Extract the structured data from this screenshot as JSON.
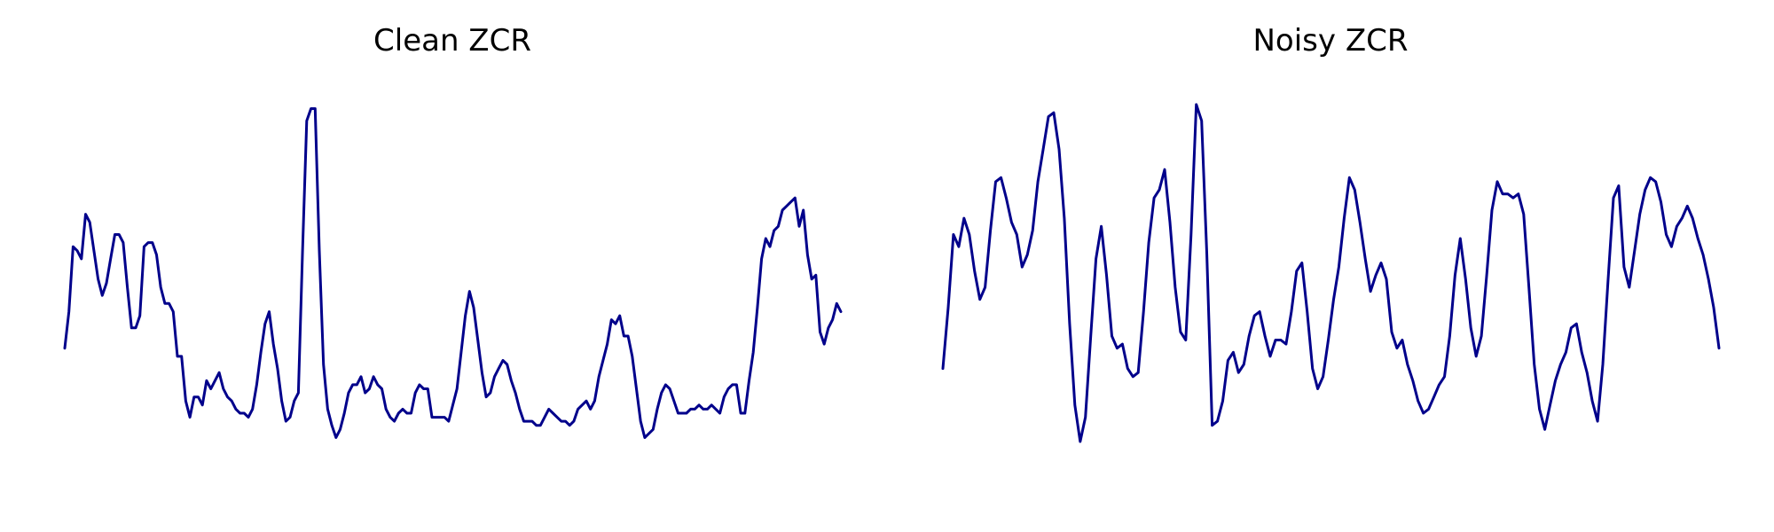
{
  "line_color": "#00008b",
  "background_color": "#ffffff",
  "chart_data": [
    {
      "type": "line",
      "title": "Clean ZCR",
      "xlabel": "",
      "ylabel": "",
      "axes": "off",
      "grid": false,
      "legend": "none",
      "xlim": [
        0,
        138
      ],
      "ylim": [
        0,
        1
      ],
      "series": [
        {
          "values": [
            0.35,
            0.44,
            0.6,
            0.59,
            0.57,
            0.68,
            0.66,
            0.59,
            0.52,
            0.48,
            0.51,
            0.57,
            0.63,
            0.63,
            0.61,
            0.5,
            0.4,
            0.4,
            0.43,
            0.6,
            0.61,
            0.61,
            0.58,
            0.5,
            0.46,
            0.46,
            0.44,
            0.33,
            0.33,
            0.22,
            0.18,
            0.23,
            0.23,
            0.21,
            0.27,
            0.25,
            0.27,
            0.29,
            0.25,
            0.23,
            0.22,
            0.2,
            0.19,
            0.19,
            0.18,
            0.2,
            0.26,
            0.34,
            0.41,
            0.44,
            0.36,
            0.3,
            0.22,
            0.17,
            0.18,
            0.22,
            0.24,
            0.59,
            0.91,
            0.94,
            0.94,
            0.59,
            0.31,
            0.2,
            0.16,
            0.13,
            0.15,
            0.19,
            0.24,
            0.26,
            0.26,
            0.28,
            0.24,
            0.25,
            0.28,
            0.26,
            0.25,
            0.2,
            0.18,
            0.17,
            0.19,
            0.2,
            0.19,
            0.19,
            0.24,
            0.26,
            0.25,
            0.25,
            0.18,
            0.18,
            0.18,
            0.18,
            0.17,
            0.21,
            0.25,
            0.34,
            0.43,
            0.49,
            0.45,
            0.37,
            0.29,
            0.23,
            0.24,
            0.28,
            0.3,
            0.32,
            0.31,
            0.27,
            0.24,
            0.2,
            0.17,
            0.17,
            0.17,
            0.16,
            0.16,
            0.18,
            0.2,
            0.19,
            0.18,
            0.17,
            0.17,
            0.16,
            0.17,
            0.2,
            0.21,
            0.22,
            0.2,
            0.22,
            0.28,
            0.32,
            0.36,
            0.42,
            0.41,
            0.43,
            0.38,
            0.38,
            0.33,
            0.25,
            0.17,
            0.13,
            0.14,
            0.15,
            0.2,
            0.24,
            0.26,
            0.25,
            0.22,
            0.19,
            0.19,
            0.19,
            0.2,
            0.2,
            0.21,
            0.2,
            0.2,
            0.21,
            0.2,
            0.19,
            0.23,
            0.25,
            0.26,
            0.26,
            0.19,
            0.19,
            0.27,
            0.34,
            0.45,
            0.57,
            0.62,
            0.6,
            0.64,
            0.65,
            0.69,
            0.7,
            0.71,
            0.72,
            0.65,
            0.69,
            0.58,
            0.52,
            0.53,
            0.39,
            0.36,
            0.4,
            0.42,
            0.46,
            0.44
          ]
        }
      ]
    },
    {
      "type": "line",
      "title": "Noisy ZCR",
      "xlabel": "",
      "ylabel": "",
      "axes": "off",
      "grid": false,
      "legend": "none",
      "xlim": [
        0,
        138
      ],
      "ylim": [
        0,
        1
      ],
      "series": [
        {
          "values": [
            0.3,
            0.45,
            0.63,
            0.6,
            0.67,
            0.63,
            0.54,
            0.47,
            0.5,
            0.64,
            0.76,
            0.77,
            0.72,
            0.66,
            0.63,
            0.55,
            0.58,
            0.64,
            0.76,
            0.84,
            0.92,
            0.93,
            0.84,
            0.67,
            0.41,
            0.21,
            0.12,
            0.18,
            0.38,
            0.57,
            0.65,
            0.53,
            0.38,
            0.35,
            0.36,
            0.3,
            0.28,
            0.29,
            0.44,
            0.61,
            0.72,
            0.74,
            0.79,
            0.66,
            0.5,
            0.39,
            0.37,
            0.63,
            0.95,
            0.91,
            0.58,
            0.16,
            0.17,
            0.22,
            0.32,
            0.34,
            0.29,
            0.31,
            0.38,
            0.43,
            0.44,
            0.38,
            0.33,
            0.37,
            0.37,
            0.36,
            0.44,
            0.54,
            0.56,
            0.44,
            0.3,
            0.25,
            0.28,
            0.37,
            0.47,
            0.55,
            0.67,
            0.77,
            0.74,
            0.66,
            0.57,
            0.49,
            0.53,
            0.56,
            0.52,
            0.39,
            0.35,
            0.37,
            0.31,
            0.27,
            0.22,
            0.19,
            0.2,
            0.23,
            0.26,
            0.28,
            0.38,
            0.53,
            0.62,
            0.52,
            0.4,
            0.33,
            0.38,
            0.53,
            0.69,
            0.76,
            0.73,
            0.73,
            0.72,
            0.73,
            0.68,
            0.5,
            0.31,
            0.2,
            0.15,
            0.21,
            0.27,
            0.31,
            0.34,
            0.4,
            0.41,
            0.34,
            0.29,
            0.22,
            0.17,
            0.31,
            0.52,
            0.72,
            0.75,
            0.55,
            0.5,
            0.59,
            0.68,
            0.74,
            0.77,
            0.76,
            0.71,
            0.63,
            0.6,
            0.65,
            0.67,
            0.7,
            0.67,
            0.62,
            0.58,
            0.52,
            0.45,
            0.35
          ]
        }
      ]
    }
  ]
}
